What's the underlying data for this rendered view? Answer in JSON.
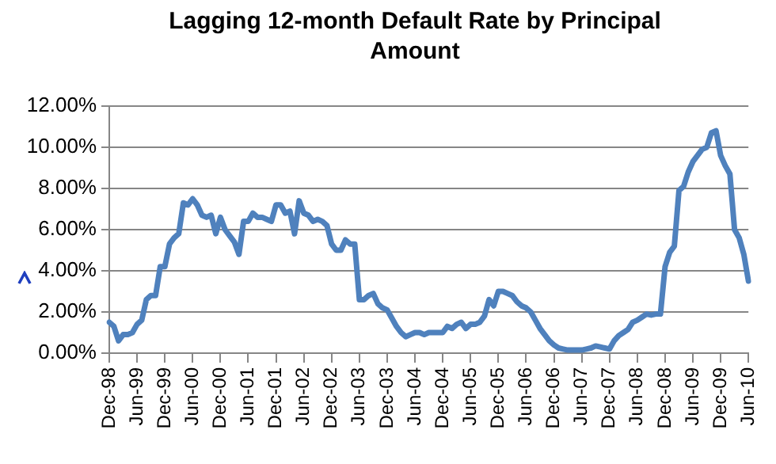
{
  "chart_data": {
    "type": "line",
    "title": "Lagging 12-month Default Rate by Principal Amount",
    "categories": [
      "Dec-98",
      null,
      null,
      null,
      null,
      null,
      "Jun-99",
      null,
      null,
      null,
      null,
      null,
      "Dec-99",
      null,
      null,
      null,
      null,
      null,
      "Jun-00",
      null,
      null,
      null,
      null,
      null,
      "Dec-00",
      null,
      null,
      null,
      null,
      null,
      "Jun-01",
      null,
      null,
      null,
      null,
      null,
      "Dec-01",
      null,
      null,
      null,
      null,
      null,
      "Jun-02",
      null,
      null,
      null,
      null,
      null,
      "Dec-02",
      null,
      null,
      null,
      null,
      null,
      "Jun-03",
      null,
      null,
      null,
      null,
      null,
      "Dec-03",
      null,
      null,
      null,
      null,
      null,
      "Jun-04",
      null,
      null,
      null,
      null,
      null,
      "Dec-04",
      null,
      null,
      null,
      null,
      null,
      "Jun-05",
      null,
      null,
      null,
      null,
      null,
      "Dec-05",
      null,
      null,
      null,
      null,
      null,
      "Jun-06",
      null,
      null,
      null,
      null,
      null,
      "Dec-06",
      null,
      null,
      null,
      null,
      null,
      "Jun-07",
      null,
      null,
      null,
      null,
      null,
      "Dec-07",
      null,
      null,
      null,
      null,
      null,
      "Jun-08",
      null,
      null,
      null,
      null,
      null,
      "Dec-08",
      null,
      null,
      null,
      null,
      null,
      "Jun-09",
      null,
      null,
      null,
      null,
      null,
      "Dec-09",
      null,
      null,
      null,
      null,
      null,
      "Jun-10"
    ],
    "series": [
      {
        "color": "#4f81bd",
        "values": [
          1.5,
          1.3,
          0.6,
          0.9,
          0.9,
          1.0,
          1.4,
          1.6,
          2.6,
          2.8,
          2.8,
          4.2,
          4.2,
          5.3,
          5.6,
          5.8,
          7.3,
          7.2,
          7.5,
          7.2,
          6.7,
          6.6,
          6.7,
          5.8,
          6.6,
          6.0,
          5.7,
          5.4,
          4.8,
          6.4,
          6.4,
          6.8,
          6.6,
          6.6,
          6.5,
          6.4,
          7.2,
          7.2,
          6.8,
          6.9,
          5.8,
          7.4,
          6.8,
          6.7,
          6.4,
          6.5,
          6.4,
          6.2,
          5.3,
          5.0,
          5.0,
          5.5,
          5.3,
          5.3,
          2.6,
          2.6,
          2.8,
          2.9,
          2.4,
          2.2,
          2.1,
          1.7,
          1.3,
          1.0,
          0.8,
          0.9,
          1.0,
          1.0,
          0.9,
          1.0,
          1.0,
          1.0,
          1.0,
          1.3,
          1.2,
          1.4,
          1.5,
          1.2,
          1.4,
          1.4,
          1.5,
          1.8,
          2.6,
          2.3,
          3.0,
          3.0,
          2.9,
          2.8,
          2.5,
          2.3,
          2.2,
          2.0,
          1.6,
          1.2,
          0.9,
          0.6,
          0.4,
          0.25,
          0.2,
          0.15,
          0.15,
          0.15,
          0.15,
          0.2,
          0.25,
          0.35,
          0.3,
          0.25,
          0.2,
          0.6,
          0.85,
          1.0,
          1.15,
          1.5,
          1.6,
          1.75,
          1.9,
          1.85,
          1.9,
          1.9,
          4.2,
          4.9,
          5.2,
          7.9,
          8.1,
          8.8,
          9.3,
          9.6,
          9.9,
          10.0,
          10.7,
          10.8,
          9.6,
          9.1,
          8.7,
          6.0,
          5.6,
          4.8,
          3.5
        ]
      }
    ],
    "ylim": [
      0,
      12
    ],
    "yticks": [
      {
        "value": 0,
        "label": "0.00%"
      },
      {
        "value": 2,
        "label": "2.00%"
      },
      {
        "value": 4,
        "label": "4.00%"
      },
      {
        "value": 6,
        "label": "6.00%"
      },
      {
        "value": 8,
        "label": "8.00%"
      },
      {
        "value": 10,
        "label": "10.00%"
      },
      {
        "value": 12,
        "label": "12.00%"
      }
    ],
    "grid": "y",
    "legend": false,
    "marker": "none",
    "line_style": "solid"
  }
}
